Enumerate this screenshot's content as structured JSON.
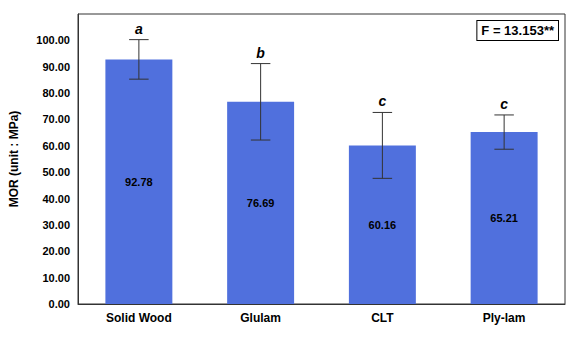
{
  "chart_data": {
    "type": "bar",
    "categories": [
      "Solid Wood",
      "Glulam",
      "CLT",
      "Ply-lam"
    ],
    "values": [
      92.78,
      76.69,
      60.16,
      65.21
    ],
    "errors": [
      7.5,
      14.5,
      12.5,
      6.5
    ],
    "superscripts": [
      "a",
      "b",
      "c",
      "c"
    ],
    "ylabel": "MOR (unit : MPa)",
    "annotation": "F = 13.153**",
    "ylim": [
      0,
      110
    ],
    "yticks": [
      {
        "value": 0,
        "label": "0.00"
      },
      {
        "value": 10,
        "label": "10.00"
      },
      {
        "value": 20,
        "label": "20.00"
      },
      {
        "value": 30,
        "label": "30.00"
      },
      {
        "value": 40,
        "label": "40.00"
      },
      {
        "value": 50,
        "label": "50.00"
      },
      {
        "value": 60,
        "label": "60.00"
      },
      {
        "value": 70,
        "label": "70.00"
      },
      {
        "value": 80,
        "label": "80.00"
      },
      {
        "value": 90,
        "label": "90.00"
      },
      {
        "value": 100,
        "label": "100.00"
      }
    ],
    "grid": false,
    "data_labels": true
  }
}
